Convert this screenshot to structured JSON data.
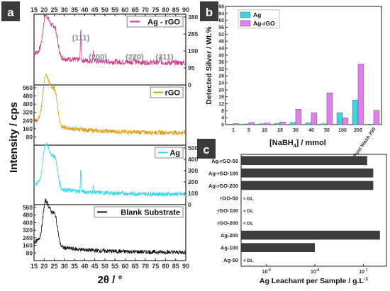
{
  "chart_data": [
    {
      "panel": "a",
      "type": "line",
      "xlabel": "2θ / °",
      "ylabel": "Intensity / cps",
      "xlim": [
        15,
        90
      ],
      "x_ticks": [
        15,
        20,
        25,
        30,
        35,
        40,
        45,
        50,
        55,
        60,
        65,
        70,
        75,
        80,
        85,
        90
      ],
      "peak_labels": [
        "(111)",
        "(200)",
        "(220)",
        "(311)"
      ],
      "peak_positions": [
        38.1,
        44.3,
        64.4,
        77.4
      ],
      "series": [
        {
          "name": "Ag - rGO",
          "color": "#cc3a8e",
          "axis": "right",
          "ylim": [
            0,
            380
          ],
          "ticks": [
            0,
            95,
            190,
            285,
            380
          ],
          "shape": "agrgo"
        },
        {
          "name": "rGO",
          "color": "#d9a01a",
          "axis": "left",
          "ylim": [
            0,
            560
          ],
          "ticks": [
            80,
            160,
            240,
            320,
            400,
            480,
            560
          ],
          "shape": "rgo"
        },
        {
          "name": "Ag",
          "color": "#33d6ea",
          "axis": "right",
          "ylim": [
            0,
            500
          ],
          "ticks": [
            0,
            100,
            200,
            300,
            400,
            500
          ],
          "shape": "ag"
        },
        {
          "name": "Blank Substrate",
          "color": "#111111",
          "axis": "left",
          "ylim": [
            0,
            560
          ],
          "ticks": [
            80,
            160,
            240,
            320,
            400,
            480,
            560
          ],
          "shape": "blank"
        }
      ]
    },
    {
      "panel": "b",
      "type": "bar",
      "xlabel": "[NaBH4] / mmol",
      "ylabel": "Detected Silver / Wt.%",
      "ylim": [
        0,
        68
      ],
      "y_ticks": [
        0,
        4,
        8,
        12,
        16,
        20,
        24,
        28,
        32,
        36,
        40,
        44,
        48,
        52,
        56,
        60,
        64,
        68
      ],
      "categories": [
        "1",
        "5",
        "10",
        "20",
        "30",
        "40",
        "50",
        "100",
        "200",
        "Post Wash 200"
      ],
      "series": [
        {
          "name": "Ag",
          "color": "#40d4e2",
          "values": [
            0.3,
            0.4,
            0.5,
            0.8,
            1.2,
            1.0,
            0.5,
            6.8,
            14.2,
            0.3
          ]
        },
        {
          "name": "Ag-rGO",
          "color": "#e27ff0",
          "values": [
            0.6,
            1.2,
            0.9,
            1.5,
            8.8,
            6.8,
            18.2,
            3.9,
            34.8,
            8.2
          ]
        }
      ]
    },
    {
      "panel": "c",
      "type": "bar",
      "orientation": "horizontal",
      "xscale": "log",
      "xlabel": "Ag Leachant per Sample / g.L-1",
      "xlim": [
        3e-10,
        3e-07
      ],
      "x_ticks": [
        "10-9",
        "10-8",
        "10-7"
      ],
      "dl_label": "< DL",
      "bar_color": "#3d3d3d",
      "categories": [
        "Ag-rGO-50",
        "Ag-rGO-100",
        "Ag-rGO-200",
        "rGO-50",
        "rGO-100",
        "rGO-200",
        "Ag-200",
        "Ag-100",
        "Ag-50"
      ],
      "values": [
        1.2e-07,
        1.6e-07,
        1.6e-07,
        null,
        null,
        null,
        2.2e-07,
        1e-08,
        null
      ]
    }
  ]
}
